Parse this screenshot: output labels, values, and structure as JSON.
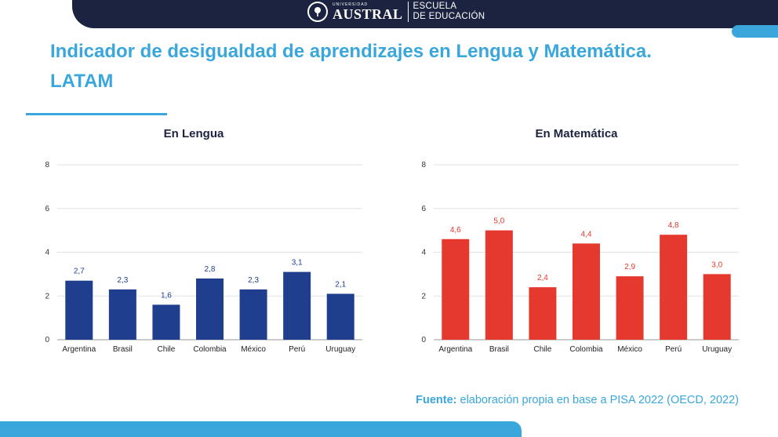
{
  "header": {
    "logo_small": "UNIVERSIDAD",
    "logo_big": "AUSTRAL",
    "school_line1": "ESCUELA",
    "school_line2": "DE EDUCACIÓN"
  },
  "title_line1": "Indicador de desigualdad de aprendizajes en Lengua y Matemática.",
  "title_line2": "LATAM",
  "source_label": "Fuente:",
  "source_text": " elaboración propia en base a PISA 2022 (OECD, 2022)",
  "colors": {
    "accent": "#3aa7dc",
    "navy": "#1b2340",
    "lengua_bar": "#1f3f8e",
    "matematica_bar": "#e5392f"
  },
  "chart_data": [
    {
      "type": "bar",
      "title": "En Lengua",
      "categories": [
        "Argentina",
        "Brasil",
        "Chile",
        "Colombia",
        "México",
        "Perú",
        "Uruguay"
      ],
      "values": [
        2.7,
        2.3,
        1.6,
        2.8,
        2.3,
        3.1,
        2.1
      ],
      "value_labels": [
        "2,7",
        "2,3",
        "1,6",
        "2,8",
        "2,3",
        "3,1",
        "2,1"
      ],
      "yticks": [
        "0",
        "2",
        "4",
        "6",
        "8"
      ],
      "ylim": [
        0,
        8
      ],
      "color": "#1f3f8e",
      "grid": true
    },
    {
      "type": "bar",
      "title": "En Matemática",
      "categories": [
        "Argentina",
        "Brasil",
        "Chile",
        "Colombia",
        "México",
        "Perú",
        "Uruguay"
      ],
      "values": [
        4.6,
        5.0,
        2.4,
        4.4,
        2.9,
        4.8,
        3.0
      ],
      "value_labels": [
        "4,6",
        "5,0",
        "2,4",
        "4,4",
        "2,9",
        "4,8",
        "3,0"
      ],
      "yticks": [
        "0",
        "2",
        "4",
        "6",
        "8"
      ],
      "ylim": [
        0,
        8
      ],
      "color": "#e5392f",
      "grid": true
    }
  ]
}
